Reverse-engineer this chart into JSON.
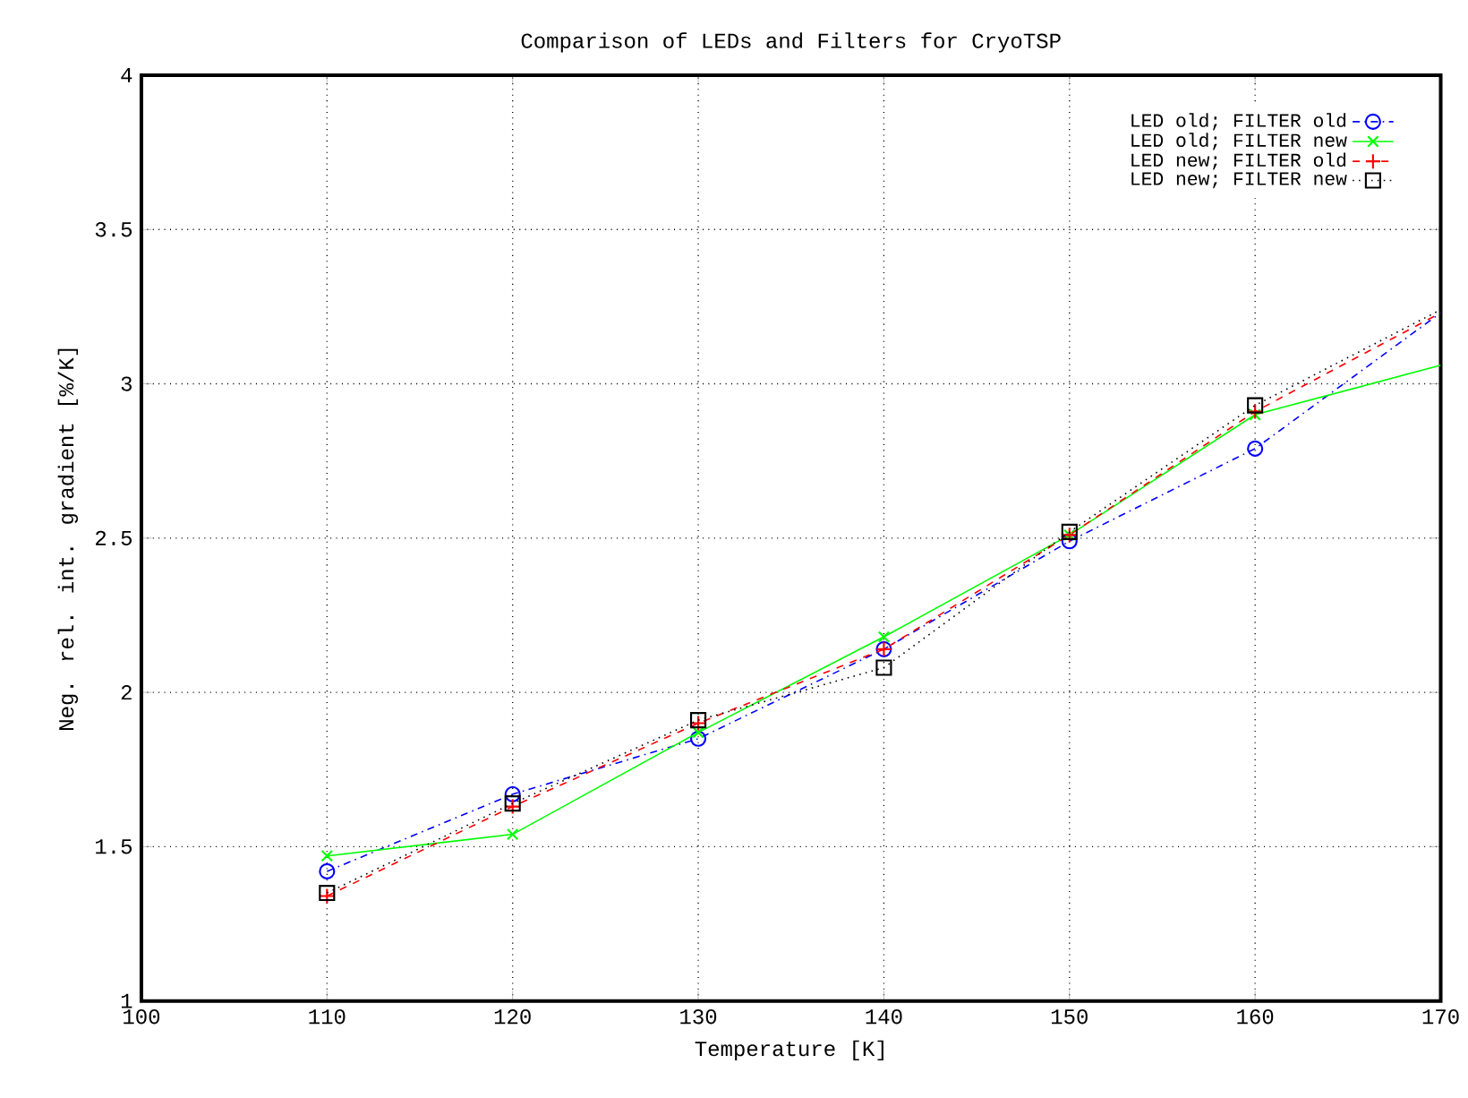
{
  "chart_data": {
    "type": "line",
    "title": "Comparison of LEDs and Filters for CryoTSP",
    "xlabel": "Temperature [K]",
    "ylabel": "Neg. rel. int. gradient [%/K]",
    "x": [
      110,
      120,
      130,
      140,
      150,
      160,
      170
    ],
    "series": [
      {
        "name": "LED old; FILTER old",
        "color": "#0000ff",
        "marker": "circle",
        "line_style": "dashdotted",
        "values": [
          1.42,
          1.67,
          1.85,
          2.14,
          2.49,
          2.79,
          3.23
        ]
      },
      {
        "name": "LED old; FILTER new",
        "color": "#00ff00",
        "marker": "cross",
        "line_style": "solid",
        "values": [
          1.47,
          1.54,
          1.87,
          2.18,
          2.51,
          2.9,
          3.06
        ]
      },
      {
        "name": "LED new; FILTER old",
        "color": "#ff0000",
        "marker": "plus",
        "line_style": "dashed",
        "values": [
          1.34,
          1.63,
          1.9,
          2.14,
          2.51,
          2.91,
          3.23
        ]
      },
      {
        "name": "LED new; FILTER new",
        "color": "#000000",
        "marker": "square",
        "line_style": "dotted",
        "values": [
          1.35,
          1.64,
          1.91,
          2.08,
          2.52,
          2.93,
          3.24
        ]
      }
    ],
    "xlim": [
      100,
      170
    ],
    "ylim": [
      1,
      4
    ],
    "xticks": [
      100,
      110,
      120,
      130,
      140,
      150,
      160,
      170
    ],
    "yticks": [
      1,
      1.5,
      2,
      2.5,
      3,
      3.5,
      4
    ],
    "grid": true,
    "legend": "top right"
  }
}
